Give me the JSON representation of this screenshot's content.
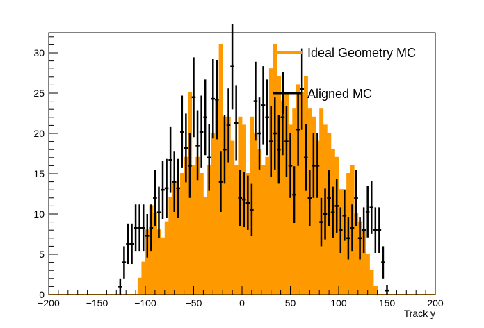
{
  "chart_data": {
    "type": "bar",
    "xlabel": "Track y",
    "ylabel": "",
    "xlim": [
      -200,
      200
    ],
    "ylim": [
      0,
      32.5
    ],
    "x_ticks": [
      "−200",
      "−150",
      "−100",
      "−50",
      "0",
      "50",
      "100",
      "150",
      "200"
    ],
    "y_ticks": [
      "0",
      "5",
      "10",
      "15",
      "20",
      "25",
      "30"
    ],
    "legend": {
      "position": "top-right",
      "entries": [
        {
          "label": "Ideal Geometry MC",
          "color": "#ff9900",
          "style": "line"
        },
        {
          "label": "Aligned MC",
          "color": "#000000",
          "style": "marker-errorbar"
        }
      ]
    },
    "bin_width": 4,
    "bin_centers_start": -198,
    "series": [
      {
        "name": "Ideal Geometry MC",
        "style": "filled-histogram",
        "color": "#ff9900",
        "values": [
          0,
          0,
          0,
          0,
          0,
          0,
          0,
          0,
          0,
          0,
          0,
          0,
          0,
          0,
          0,
          0,
          0,
          0,
          0,
          0,
          0,
          0,
          0,
          2,
          4,
          8,
          11,
          10,
          8,
          7,
          9,
          12,
          14,
          13,
          15,
          17,
          25,
          16,
          17,
          15,
          12,
          16,
          20,
          24,
          31,
          22,
          22,
          19,
          16,
          22,
          21,
          15,
          22,
          20,
          18,
          16,
          17,
          28,
          31,
          27,
          24,
          25,
          21,
          23,
          26,
          25,
          27,
          23,
          22,
          19,
          23,
          21,
          20,
          18,
          17,
          13,
          13,
          15,
          16,
          10,
          9,
          8,
          5,
          3,
          1,
          0,
          0,
          0,
          0,
          0,
          0,
          0,
          0,
          0,
          0,
          0,
          0,
          0,
          0,
          0
        ]
      },
      {
        "name": "Aligned MC",
        "style": "markers-with-errors",
        "color": "#000000",
        "values": [
          0,
          0,
          0,
          0,
          0,
          0,
          0,
          0,
          0,
          0,
          0,
          0,
          0,
          0,
          0,
          0,
          0,
          0,
          1,
          4,
          6.3,
          6.3,
          8.3,
          8.3,
          8.3,
          7.3,
          8.3,
          12,
          10.2,
          13,
          13.2,
          16.7,
          14,
          13.2,
          20.2,
          18.2,
          16,
          24.5,
          18.5,
          20.2,
          22,
          17,
          24.3,
          24.2,
          14,
          18,
          21,
          28.3,
          21.3,
          12,
          11.8,
          11.4,
          10.5,
          24,
          20,
          23.5,
          22,
          19,
          20,
          18,
          22,
          19,
          16,
          12.4,
          20.5,
          25.5,
          17,
          12,
          16,
          16,
          9,
          10,
          12,
          10.2,
          11,
          8,
          9.8,
          7,
          8.3,
          12,
          7,
          8,
          10.3,
          10.8,
          8,
          8,
          4,
          0.5,
          0,
          0,
          0,
          0,
          0,
          0,
          0,
          0,
          0,
          0,
          0,
          0
        ]
      }
    ]
  }
}
